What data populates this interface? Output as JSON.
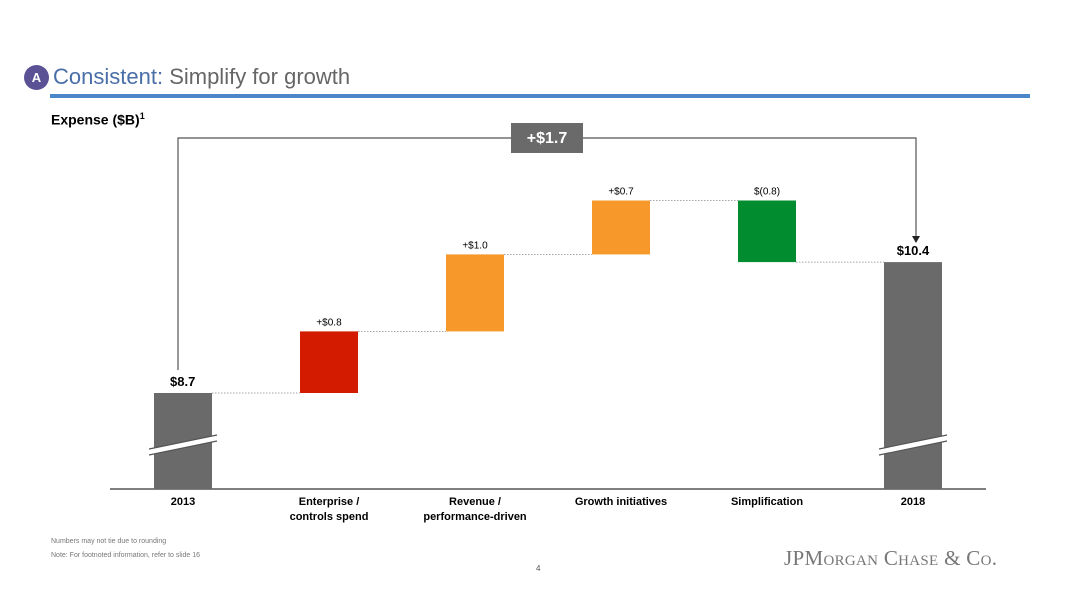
{
  "header": {
    "badge": "A",
    "title_main": "Consistent:",
    "title_rest": "Simplify for growth"
  },
  "subtitle": "Expense ($B)",
  "subtitle_sup": "1",
  "colors": {
    "gray": "#6a6a6a",
    "red": "#d31b00",
    "orange": "#f7992a",
    "green": "#008c2f",
    "accent_rule": "#4a86c8",
    "badge": "#5a5295"
  },
  "chart_data": {
    "type": "waterfall",
    "title": "Expense ($B)",
    "unit": "$B",
    "axis_break": true,
    "categories": [
      "2013",
      "Enterprise / controls spend",
      "Revenue / performance-driven",
      "Growth initiatives",
      "Simplification",
      "2018"
    ],
    "category_lines": [
      [
        "2013"
      ],
      [
        "Enterprise /",
        "controls spend"
      ],
      [
        "Revenue /",
        "performance-driven"
      ],
      [
        "Growth initiatives"
      ],
      [
        "Simplification"
      ],
      [
        "2018"
      ]
    ],
    "steps": [
      {
        "kind": "total",
        "start": 0,
        "end": 8.7,
        "label": "$8.7",
        "color": "gray"
      },
      {
        "kind": "delta",
        "start": 8.7,
        "end": 9.5,
        "label": "+$0.8",
        "color": "red"
      },
      {
        "kind": "delta",
        "start": 9.5,
        "end": 10.5,
        "label": "+$1.0",
        "color": "orange"
      },
      {
        "kind": "delta",
        "start": 10.5,
        "end": 11.2,
        "label": "+$0.7",
        "color": "orange"
      },
      {
        "kind": "delta",
        "start": 11.2,
        "end": 10.4,
        "label": "$(0.8)",
        "color": "green"
      },
      {
        "kind": "total",
        "start": 0,
        "end": 10.4,
        "label": "$10.4",
        "color": "gray"
      }
    ],
    "bracket_label": "+$1.7"
  },
  "footnotes": [
    "Numbers may not tie due to rounding",
    "Note: For footnoted information, refer to slide 16"
  ],
  "page_number": "4",
  "logo": {
    "a": "JPM",
    "b": "ORGAN",
    "c": " C",
    "d": "HASE",
    "e": " & C",
    "f": "O",
    "g": "."
  }
}
